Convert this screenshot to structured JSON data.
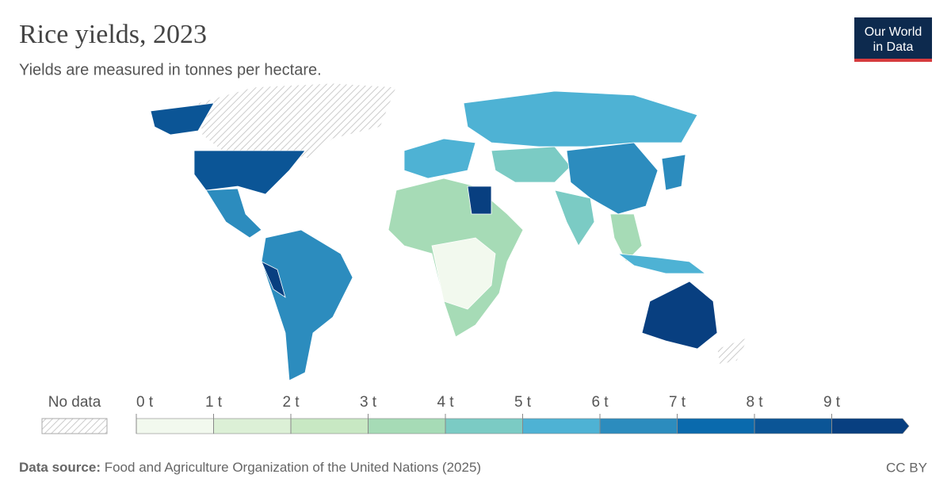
{
  "header": {
    "title": "Rice yields, 2023",
    "subtitle": "Yields are measured in tonnes per hectare."
  },
  "logo": {
    "line1": "Our World",
    "line2": "in Data"
  },
  "legend": {
    "no_data": "No data",
    "ticks": [
      {
        "value": 0,
        "label": "0 t"
      },
      {
        "value": 1,
        "label": "1 t"
      },
      {
        "value": 2,
        "label": "2 t"
      },
      {
        "value": 3,
        "label": "3 t"
      },
      {
        "value": 4,
        "label": "4 t"
      },
      {
        "value": 5,
        "label": "5 t"
      },
      {
        "value": 6,
        "label": "6 t"
      },
      {
        "value": 7,
        "label": "7 t"
      },
      {
        "value": 8,
        "label": "8 t"
      },
      {
        "value": 9,
        "label": "9 t"
      }
    ],
    "colors": [
      "#f2f9ee",
      "#dcf0d6",
      "#c8e8c3",
      "#a6dbb6",
      "#7bcbc4",
      "#4eb2d4",
      "#2c8cbe",
      "#0a6aad",
      "#0b5596",
      "#083f80"
    ]
  },
  "footer": {
    "source_label": "Data source:",
    "source": "Food and Agriculture Organization of the United Nations (2025)",
    "license": "CC BY"
  }
}
